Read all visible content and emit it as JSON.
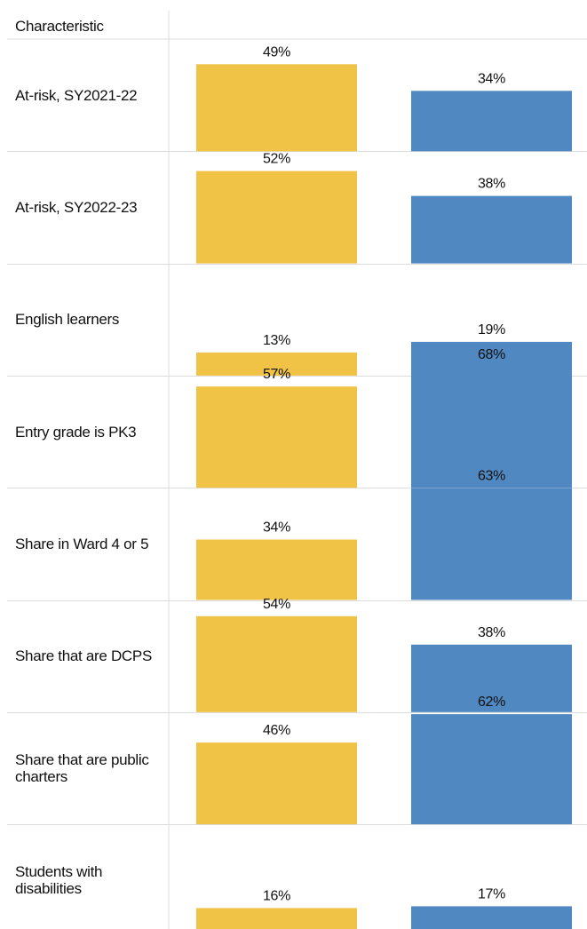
{
  "chart_data": {
    "type": "bar",
    "header": "Characteristic",
    "categories": [
      "At-risk, SY2021-22",
      "At-risk, SY2022-23",
      "English learners",
      "Entry grade is PK3",
      "Share in Ward 4 or 5",
      "Share that are DCPS",
      "Share that are public charters",
      "Students with disabilities"
    ],
    "series": [
      {
        "values": [
          49,
          52,
          13,
          57,
          34,
          54,
          46,
          16
        ],
        "color": "#f0c245"
      },
      {
        "values": [
          34,
          38,
          19,
          68,
          63,
          38,
          62,
          17
        ],
        "color": "#5088c1"
      }
    ],
    "value_suffix": "%",
    "grid": true,
    "legend": "none"
  }
}
